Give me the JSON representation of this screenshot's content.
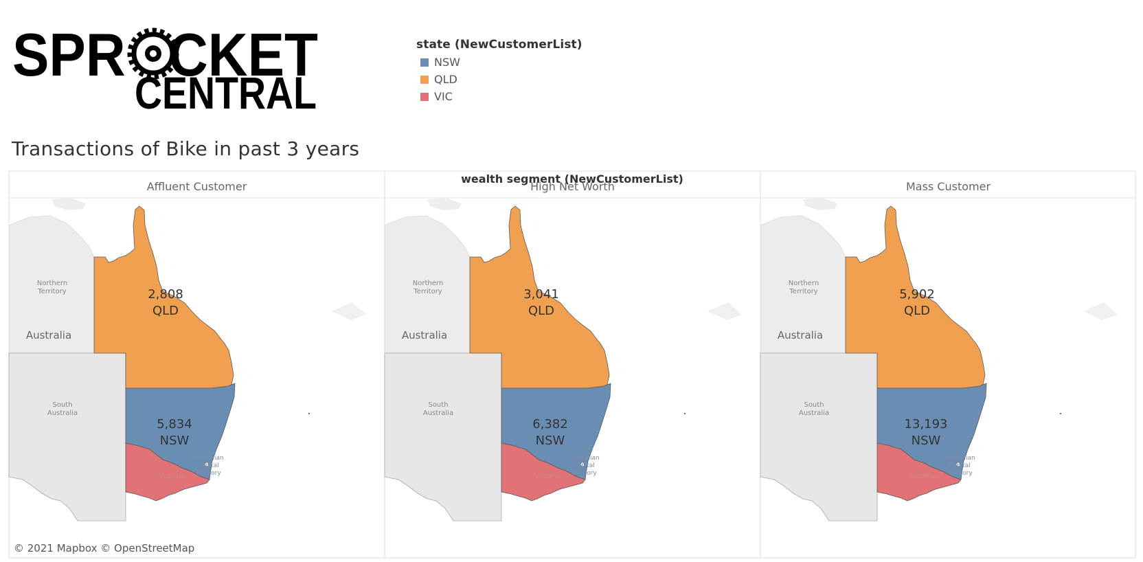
{
  "logo": {
    "line1": "SPROCKET",
    "line2": "CENTRAL"
  },
  "legend": {
    "title": "state (NewCustomerList)",
    "items": [
      {
        "label": "NSW",
        "color": "#6a8db4"
      },
      {
        "label": "QLD",
        "color": "#f0a04e"
      },
      {
        "label": "VIC",
        "color": "#e17275"
      }
    ]
  },
  "title": "Transactions of Bike in past 3 years",
  "chart_data": {
    "type": "map",
    "column_header": "wealth segment (NewCustomerList)",
    "panels": [
      {
        "segment": "Affluent Customer",
        "values": {
          "QLD": "2,808",
          "NSW": "5,834"
        }
      },
      {
        "segment": "High Net Worth",
        "values": {
          "QLD": "3,041",
          "NSW": "6,382"
        }
      },
      {
        "segment": "Mass Customer",
        "values": {
          "QLD": "5,902",
          "NSW": "13,193"
        }
      }
    ],
    "state_labels": {
      "QLD": "QLD",
      "NSW": "NSW"
    },
    "base_labels": {
      "nt": "Northern\nTerritory",
      "sa": "South\nAustralia",
      "country": "Australia",
      "act": "Australian\nCapital\nTerritory",
      "vic": "Victoria"
    },
    "attribution": "© 2021 Mapbox © OpenStreetMap"
  }
}
